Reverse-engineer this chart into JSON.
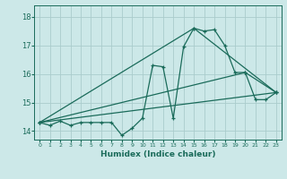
{
  "xlabel": "Humidex (Indice chaleur)",
  "bg_color": "#cce8e8",
  "grid_color": "#aacccc",
  "line_color": "#1a6b5a",
  "xlim": [
    -0.5,
    23.5
  ],
  "ylim": [
    13.7,
    18.4
  ],
  "yticks": [
    14,
    15,
    16,
    17,
    18
  ],
  "xticks": [
    0,
    1,
    2,
    3,
    4,
    5,
    6,
    7,
    8,
    9,
    10,
    11,
    12,
    13,
    14,
    15,
    16,
    17,
    18,
    19,
    20,
    21,
    22,
    23
  ],
  "series1_x": [
    0,
    1,
    2,
    3,
    4,
    5,
    6,
    7,
    8,
    9,
    10,
    11,
    12,
    13,
    14,
    15,
    16,
    17,
    18,
    19,
    20,
    21,
    22,
    23
  ],
  "series1_y": [
    14.3,
    14.2,
    14.35,
    14.2,
    14.3,
    14.3,
    14.3,
    14.3,
    13.85,
    14.1,
    14.45,
    16.3,
    16.25,
    14.45,
    16.95,
    17.6,
    17.5,
    17.55,
    17.0,
    16.05,
    16.05,
    15.1,
    15.1,
    15.35
  ],
  "series2_x": [
    0,
    15,
    23
  ],
  "series2_y": [
    14.3,
    17.6,
    15.35
  ],
  "series3_x": [
    0,
    20,
    23
  ],
  "series3_y": [
    14.3,
    16.05,
    15.35
  ],
  "series4_x": [
    0,
    23
  ],
  "series4_y": [
    14.3,
    15.35
  ]
}
